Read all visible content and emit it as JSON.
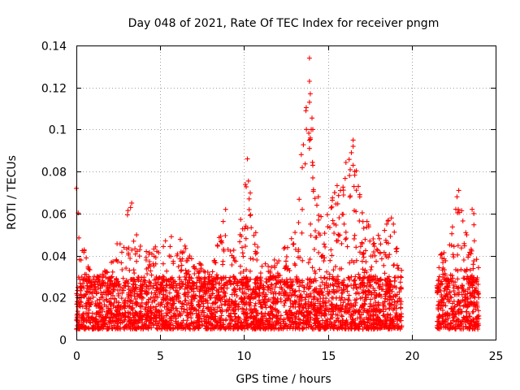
{
  "chart_data": {
    "type": "scatter",
    "title": "Day 048 of 2021, Rate Of TEC Index for receiver pngm",
    "xlabel": "GPS time / hours",
    "ylabel": "ROTI / TECUs",
    "xlim": [
      0,
      25
    ],
    "ylim": [
      0,
      0.14
    ],
    "xticks": [
      "0",
      "5",
      "10",
      "15",
      "20",
      "25"
    ],
    "yticks": [
      "0",
      "0.02",
      "0.04",
      "0.06",
      "0.08",
      "0.1",
      "0.12",
      "0.14"
    ],
    "grid": true,
    "marker": "+",
    "color": "#ff0000",
    "observed_time_ranges_hours": [
      [
        0,
        19.4
      ],
      [
        21.5,
        24
      ]
    ],
    "typical_range_tecu": [
      0.005,
      0.03
    ],
    "notable_points": [
      {
        "x": 0.0,
        "y": 0.072
      },
      {
        "x": 3.3,
        "y": 0.065
      },
      {
        "x": 8.9,
        "y": 0.062
      },
      {
        "x": 10.2,
        "y": 0.086
      },
      {
        "x": 10.3,
        "y": 0.067
      },
      {
        "x": 13.9,
        "y": 0.134
      },
      {
        "x": 13.9,
        "y": 0.123
      },
      {
        "x": 13.95,
        "y": 0.117
      },
      {
        "x": 13.9,
        "y": 0.113
      },
      {
        "x": 14.0,
        "y": 0.1
      },
      {
        "x": 14.1,
        "y": 0.1
      },
      {
        "x": 13.95,
        "y": 0.096
      },
      {
        "x": 13.9,
        "y": 0.091
      },
      {
        "x": 14.1,
        "y": 0.083
      },
      {
        "x": 14.1,
        "y": 0.077
      },
      {
        "x": 16.5,
        "y": 0.095
      },
      {
        "x": 16.5,
        "y": 0.092
      },
      {
        "x": 16.5,
        "y": 0.083
      },
      {
        "x": 16.6,
        "y": 0.08
      },
      {
        "x": 15.4,
        "y": 0.07
      },
      {
        "x": 16.9,
        "y": 0.069
      },
      {
        "x": 22.8,
        "y": 0.071
      },
      {
        "x": 22.7,
        "y": 0.068
      },
      {
        "x": 23.6,
        "y": 0.062
      },
      {
        "x": 23.7,
        "y": 0.06
      }
    ],
    "envelope": [
      {
        "x": 0.0,
        "max": 0.072
      },
      {
        "x": 0.3,
        "max": 0.047
      },
      {
        "x": 1.0,
        "max": 0.03
      },
      {
        "x": 2.0,
        "max": 0.034
      },
      {
        "x": 2.7,
        "max": 0.056
      },
      {
        "x": 3.3,
        "max": 0.065
      },
      {
        "x": 4.0,
        "max": 0.042
      },
      {
        "x": 5.0,
        "max": 0.046
      },
      {
        "x": 6.0,
        "max": 0.052
      },
      {
        "x": 7.0,
        "max": 0.04
      },
      {
        "x": 8.0,
        "max": 0.032
      },
      {
        "x": 8.9,
        "max": 0.062
      },
      {
        "x": 9.5,
        "max": 0.038
      },
      {
        "x": 10.2,
        "max": 0.086
      },
      {
        "x": 11.0,
        "max": 0.035
      },
      {
        "x": 12.0,
        "max": 0.04
      },
      {
        "x": 13.0,
        "max": 0.05
      },
      {
        "x": 13.9,
        "max": 0.134
      },
      {
        "x": 14.5,
        "max": 0.06
      },
      {
        "x": 15.4,
        "max": 0.07
      },
      {
        "x": 16.5,
        "max": 0.095
      },
      {
        "x": 17.0,
        "max": 0.062
      },
      {
        "x": 18.0,
        "max": 0.05
      },
      {
        "x": 18.8,
        "max": 0.06
      },
      {
        "x": 19.4,
        "max": 0.033
      },
      {
        "x": 21.6,
        "max": 0.04
      },
      {
        "x": 22.3,
        "max": 0.048
      },
      {
        "x": 22.8,
        "max": 0.071
      },
      {
        "x": 23.3,
        "max": 0.056
      },
      {
        "x": 23.7,
        "max": 0.062
      },
      {
        "x": 24.0,
        "max": 0.035
      }
    ]
  }
}
